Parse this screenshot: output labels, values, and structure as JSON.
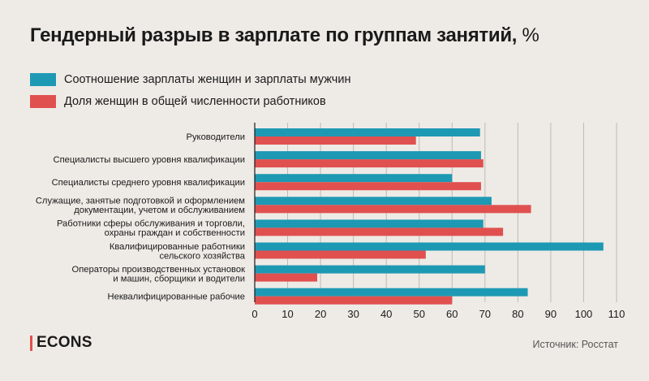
{
  "title": "Гендерный разрыв в зарплате по группам занятий,",
  "title_unit": "%",
  "legend": [
    {
      "label": "Соотношение зарплаты женщин и зарплаты мужчин",
      "color": "#1e99b4"
    },
    {
      "label": "Доля женщин в общей численности работников",
      "color": "#e0504f"
    }
  ],
  "brand": "ECONS",
  "source": "Источник: Росстат",
  "chart_data": {
    "type": "bar",
    "orientation": "horizontal",
    "categories": [
      [
        "Руководители"
      ],
      [
        "Специалисты высшего уровня квалификации"
      ],
      [
        "Специалисты среднего уровня квалификации"
      ],
      [
        "Служащие, занятые подготовкой и оформлением",
        "документации, учетом и обслуживанием"
      ],
      [
        "Работники сферы обслуживания и торговли,",
        "охраны граждан и собственности"
      ],
      [
        "Квалифицированные работники",
        "сельского хозяйства"
      ],
      [
        "Операторы производственных установок",
        "и машин, сборщики и водители"
      ],
      [
        "Неквалифицированные рабочие"
      ]
    ],
    "series": [
      {
        "name": "Соотношение зарплаты женщин и зарплаты мужчин",
        "color": "#1e99b4",
        "values": [
          68.5,
          68.8,
          60,
          72,
          69.5,
          106,
          70,
          83
        ]
      },
      {
        "name": "Доля женщин в общей численности работников",
        "color": "#e0504f",
        "values": [
          49,
          69.5,
          68.8,
          84,
          75.5,
          52,
          19,
          60
        ]
      }
    ],
    "xlim": [
      0,
      110
    ],
    "xticks": [
      0,
      10,
      20,
      30,
      40,
      50,
      60,
      70,
      80,
      90,
      100,
      110
    ],
    "grid": true
  }
}
